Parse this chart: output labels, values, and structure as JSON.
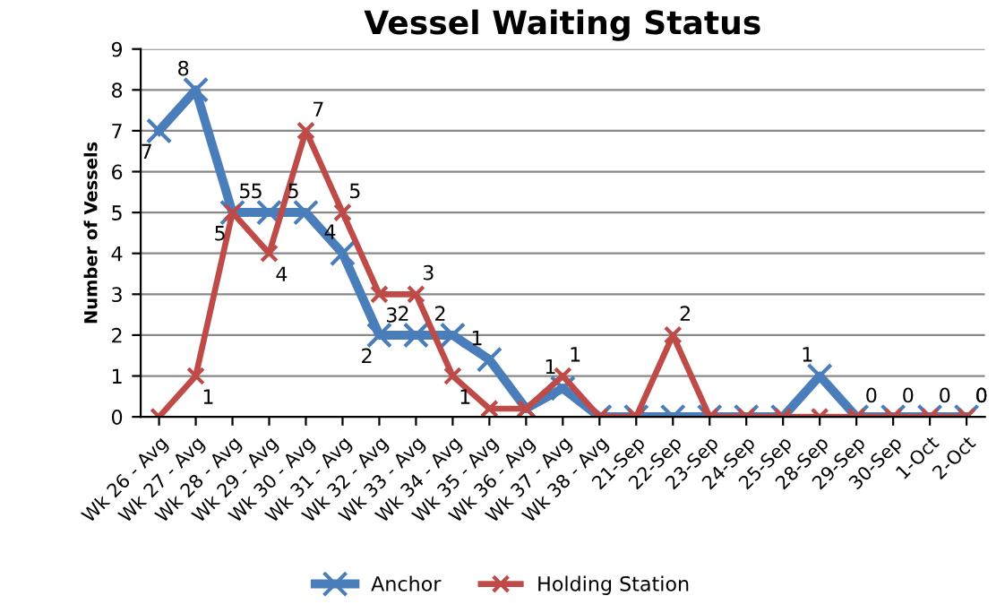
{
  "chart_data": {
    "type": "line",
    "title": "Vessel Waiting Status",
    "ylabel": "Number of Vessels",
    "categories": [
      "Wk 26 - Avg",
      "Wk 27 - Avg",
      "Wk 28 - Avg",
      "Wk 29 - Avg",
      "Wk 30 - Avg",
      "Wk 31 - Avg",
      "Wk 32 - Avg",
      "Wk 33 - Avg",
      "Wk 34 - Avg",
      "Wk 35 - Avg",
      "Wk 36 - Avg",
      "Wk 37 - Avg",
      "Wk 38 - Avg",
      "21-Sep",
      "22-Sep",
      "23-Sep",
      "24-Sep",
      "25-Sep",
      "28-Sep",
      "29-Sep",
      "30-Sep",
      "1-Oct",
      "2-Oct"
    ],
    "series": [
      {
        "name": "Anchor",
        "color": "#4a7ebb",
        "values": [
          7,
          8,
          5,
          5,
          5,
          4,
          2,
          2,
          2,
          1.4,
          0.2,
          0.7,
          0,
          0,
          0,
          0,
          0,
          0,
          1,
          0,
          0,
          0,
          0
        ],
        "value_labels": [
          "7",
          "8",
          "5",
          "5",
          "5",
          "4",
          "2",
          "2",
          "2",
          "1",
          null,
          "1",
          null,
          null,
          null,
          null,
          null,
          null,
          "1",
          "0",
          "0",
          "0",
          "0"
        ]
      },
      {
        "name": "Holding Station",
        "color": "#be4b48",
        "values": [
          0,
          1,
          5,
          4,
          7,
          5,
          3,
          3,
          1,
          0.2,
          0.2,
          1,
          0,
          0,
          2,
          0,
          0,
          0,
          0,
          0,
          0,
          0,
          0
        ],
        "value_labels": [
          null,
          "1",
          "5",
          "4",
          "7",
          "5",
          "3",
          "3",
          "1",
          null,
          null,
          "1",
          null,
          null,
          "2",
          null,
          null,
          null,
          null,
          null,
          null,
          null,
          "0"
        ]
      }
    ],
    "ylim": [
      0,
      9
    ],
    "yticks": [
      0,
      1,
      2,
      3,
      4,
      5,
      6,
      7,
      8,
      9
    ],
    "grid": "y",
    "legend": "bottom",
    "marker": "cross",
    "line_style": "solid"
  }
}
